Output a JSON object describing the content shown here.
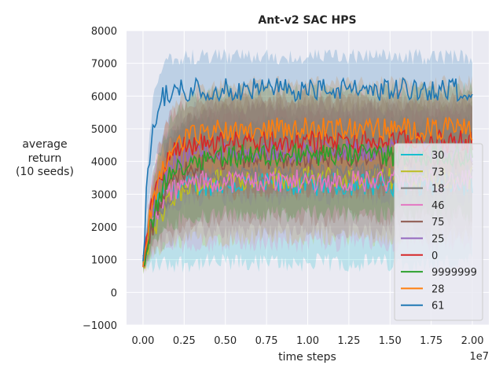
{
  "chart_data": {
    "type": "line",
    "title": "Ant-v2 SAC HPS",
    "xlabel": "time steps",
    "ylabel": [
      "average",
      "return",
      "(10 seeds)"
    ],
    "x_offset_label": "1e7",
    "xlim": [
      -0.1,
      2.1
    ],
    "ylim": [
      -1000,
      8000
    ],
    "x_ticks": [
      0.0,
      0.25,
      0.5,
      0.75,
      1.0,
      1.25,
      1.5,
      1.75,
      2.0
    ],
    "x_tick_labels": [
      "0.00",
      "0.25",
      "0.50",
      "0.75",
      "1.00",
      "1.25",
      "1.50",
      "1.75",
      "2.00"
    ],
    "y_ticks": [
      -1000,
      0,
      1000,
      2000,
      3000,
      4000,
      5000,
      6000,
      7000,
      8000
    ],
    "y_tick_labels": [
      "−1000",
      "0",
      "1000",
      "2000",
      "3000",
      "4000",
      "5000",
      "6000",
      "7000",
      "8000"
    ],
    "grid": true,
    "background_color": "#eaeaf2",
    "legend_position": "lower-right",
    "series": [
      {
        "name": "30",
        "color": "#17becf",
        "start": 700,
        "plateau": 3300,
        "rise": 0.06,
        "upper": 5200,
        "lower": 900
      },
      {
        "name": "73",
        "color": "#bcbd22",
        "start": 650,
        "plateau": 3500,
        "rise": 0.12,
        "upper": 5000,
        "lower": 1700
      },
      {
        "name": "18",
        "color": "#7f7f7f",
        "start": 700,
        "plateau": 3600,
        "rise": 0.1,
        "upper": 5600,
        "lower": 1900
      },
      {
        "name": "46",
        "color": "#e377c2",
        "start": 750,
        "plateau": 3400,
        "rise": 0.08,
        "upper": 5400,
        "lower": 1500
      },
      {
        "name": "75",
        "color": "#8c564b",
        "start": 700,
        "plateau": 4100,
        "rise": 0.12,
        "upper": 5800,
        "lower": 2300
      },
      {
        "name": "25",
        "color": "#9467bd",
        "start": 800,
        "plateau": 4300,
        "rise": 0.08,
        "upper": 5700,
        "lower": 2900
      },
      {
        "name": "0",
        "color": "#d62728",
        "start": 800,
        "plateau": 4600,
        "rise": 0.08,
        "upper": 6000,
        "lower": 3100
      },
      {
        "name": "9999999",
        "color": "#2ca02c",
        "start": 750,
        "plateau": 4200,
        "rise": 0.1,
        "upper": 6200,
        "lower": 2400
      },
      {
        "name": "28",
        "color": "#ff7f0e",
        "start": 900,
        "plateau": 5000,
        "rise": 0.1,
        "upper": 6400,
        "lower": 3700
      },
      {
        "name": "61",
        "color": "#1f77b4",
        "start": 700,
        "plateau": 6200,
        "rise": 0.04,
        "upper": 7200,
        "lower": 4500
      }
    ]
  }
}
